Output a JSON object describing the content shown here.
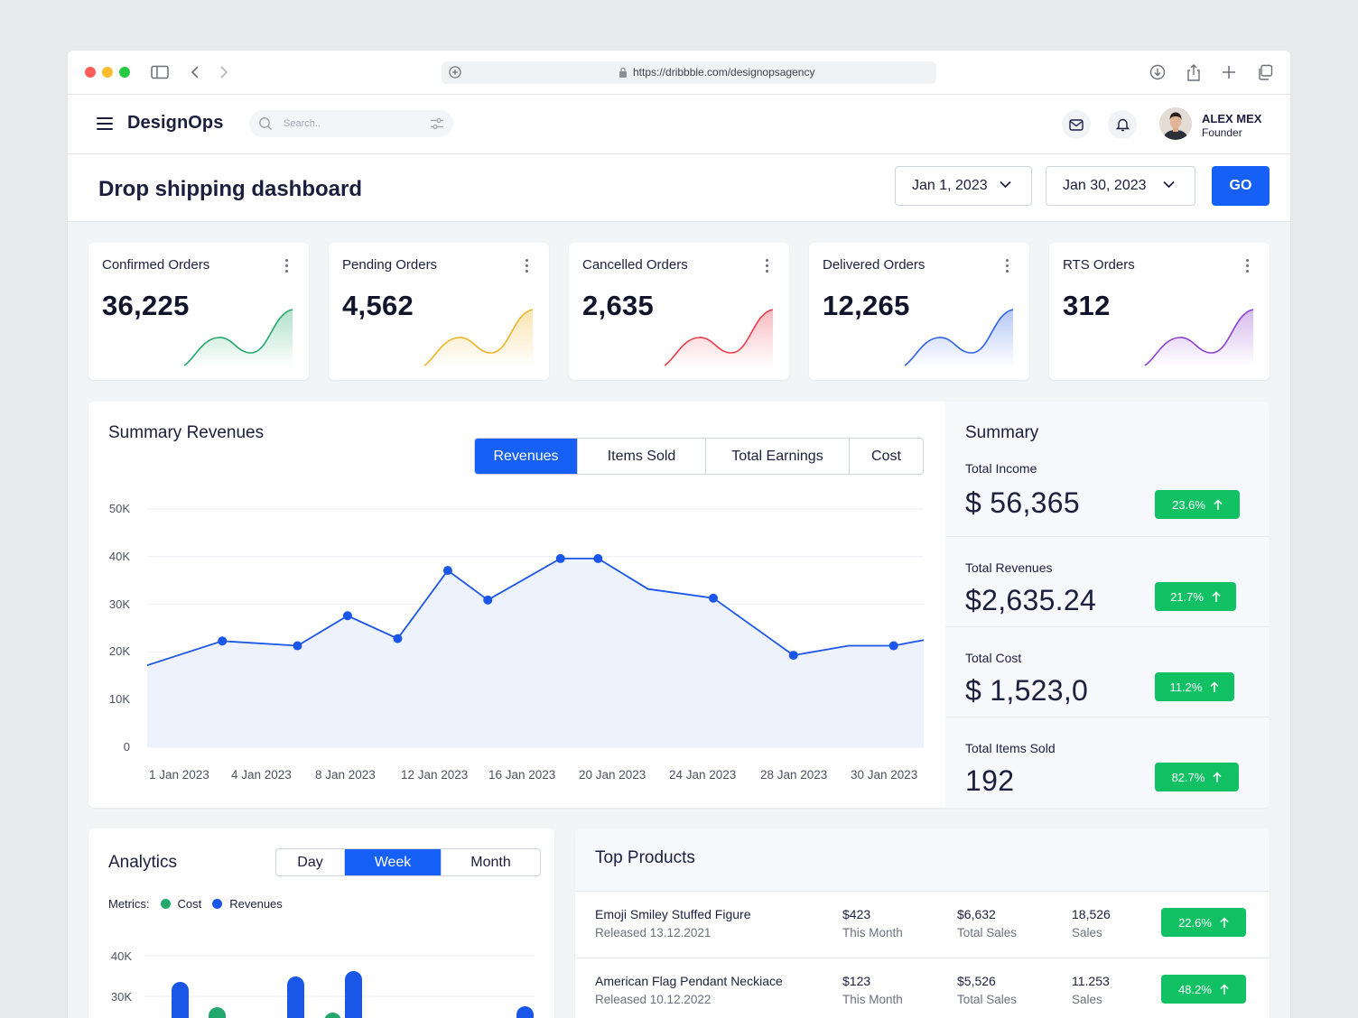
{
  "browser": {
    "url": "https://dribbble.com/designopsagency"
  },
  "app": {
    "brand": "DesignOps",
    "search_placeholder": "Search..",
    "user": {
      "name": "ALEX MEX",
      "role": "Founder"
    }
  },
  "page": {
    "title": "Drop shipping dashboard",
    "date_from": "Jan 1, 2023",
    "date_to": "Jan 30, 2023",
    "go_label": "GO"
  },
  "kpis": [
    {
      "label": "Confirmed Orders",
      "value": "36,225",
      "color": "#22a86b"
    },
    {
      "label": "Pending Orders",
      "value": "4,562",
      "color": "#f0b323"
    },
    {
      "label": "Cancelled Orders",
      "value": "2,635",
      "color": "#ec3b4a"
    },
    {
      "label": "Delivered Orders",
      "value": "12,265",
      "color": "#2d61e8"
    },
    {
      "label": "RTS Orders",
      "value": "312",
      "color": "#8a3fd1"
    }
  ],
  "revenues": {
    "title": "Summary Revenues",
    "tabs": [
      "Revenues",
      "Items Sold",
      "Total Earnings",
      "Cost"
    ],
    "active_tab": 0
  },
  "chart_data": {
    "type": "area",
    "title": "Summary Revenues",
    "xlabel": "",
    "ylabel": "",
    "ylim": [
      0,
      50000
    ],
    "yticks": [
      "0",
      "10K",
      "20K",
      "30K",
      "40K",
      "50K"
    ],
    "ytick_values": [
      0,
      10000,
      20000,
      30000,
      40000,
      50000
    ],
    "x_tick_labels": [
      "1 Jan 2023",
      "4 Jan 2023",
      "8 Jan 2023",
      "12 Jan 2023",
      "16 Jan 2023",
      "20 Jan 2023",
      "24 Jan 2023",
      "28 Jan 2023",
      "30 Jan 2023"
    ],
    "series": [
      {
        "x": [
          1,
          4,
          7,
          9,
          11,
          13,
          14.6,
          17.5,
          19,
          21,
          23.6,
          26.8,
          29,
          30.8,
          32
        ],
        "values": [
          17200,
          22300,
          21300,
          27600,
          22800,
          37100,
          30900,
          39600,
          39600,
          33200,
          31300,
          19300,
          21300,
          21300,
          22500
        ],
        "markers": [
          false,
          true,
          true,
          true,
          true,
          true,
          true,
          true,
          true,
          false,
          true,
          true,
          false,
          true,
          false
        ]
      }
    ],
    "color": "#1a56e8",
    "grid": true
  },
  "summary": {
    "title": "Summary",
    "items": [
      {
        "label": "Total Income",
        "value": "$ 56,365",
        "change": "23.6%"
      },
      {
        "label": "Total Revenues",
        "value": "$2,635.24",
        "change": "21.7%"
      },
      {
        "label": "Total Cost",
        "value": "$ 1,523,0",
        "change": "11.2%"
      },
      {
        "label": "Total Items Sold",
        "value": "192",
        "change": "82.7%"
      }
    ]
  },
  "analytics": {
    "title": "Analytics",
    "tabs": [
      "Day",
      "Week",
      "Month"
    ],
    "active_tab": 1,
    "metrics_label": "Metrics:",
    "legend": [
      {
        "name": "Cost",
        "color": "#22a86b"
      },
      {
        "name": "Revenues",
        "color": "#1a56e8"
      }
    ],
    "yticks": [
      "40K",
      "30K"
    ]
  },
  "products": {
    "title": "Top Products",
    "rows": [
      {
        "name": "Emoji Smiley Stuffed Figure",
        "released": "Released 13.12.2021",
        "month_value": "$423",
        "month_label": "This Month",
        "total_value": "$6,632",
        "total_label": "Total Sales",
        "sales_value": "18,526",
        "sales_label": "Sales",
        "change": "22.6%"
      },
      {
        "name": "American Flag Pendant Neckiace",
        "released": "Released 10.12.2022",
        "month_value": "$123",
        "month_label": "This Month",
        "total_value": "$5,526",
        "total_label": "Total Sales",
        "sales_value": "11.253",
        "sales_label": "Sales",
        "change": "48.2%"
      }
    ]
  }
}
